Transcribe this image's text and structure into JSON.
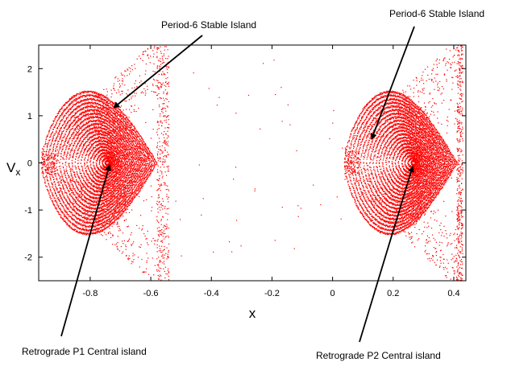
{
  "chart_data": {
    "type": "scatter",
    "xlabel": "x",
    "ylabel_main": "V",
    "ylabel_sub": "x",
    "xlim": [
      -0.97,
      0.44
    ],
    "ylim": [
      -2.5,
      2.5
    ],
    "x_ticks": [
      -0.8,
      -0.6,
      -0.4,
      -0.2,
      0,
      0.2,
      0.4
    ],
    "x_tick_labels": [
      "-0.8",
      "-0.6",
      "-0.4",
      "-0.2",
      "0",
      "0.2",
      "0.4"
    ],
    "y_ticks": [
      2,
      1,
      0,
      -1,
      -2
    ],
    "y_tick_labels": [
      "2",
      "1",
      "0",
      "-1",
      "-2"
    ],
    "grid": false,
    "point_color": "#ff0000",
    "regions": [
      {
        "center": [
          -0.74,
          0.0
        ],
        "apex_x": -0.96,
        "edge_x": -0.58,
        "half_height_at_edge": 2.4,
        "tail_x": -0.54
      },
      {
        "center": [
          0.27,
          0.0
        ],
        "apex_x": 0.04,
        "edge_x": 0.41,
        "half_height_at_edge": 2.4,
        "tail_x": 0.43
      }
    ],
    "annotations": [
      {
        "text": "Period-6 Stable Island",
        "target": [
          -0.73,
          1.15
        ]
      },
      {
        "text": "Period-6 Stable Island",
        "target": [
          0.13,
          0.48
        ]
      },
      {
        "text": "Retrograde P1 Central island",
        "target": [
          -0.735,
          0.02
        ]
      },
      {
        "text": "Retrograde P2 Central island",
        "target": [
          0.27,
          -0.01
        ]
      }
    ]
  }
}
